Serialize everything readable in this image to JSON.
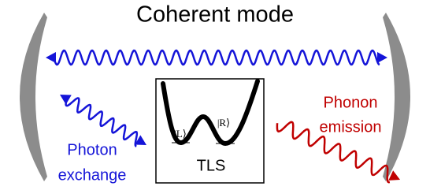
{
  "title": "Coherent mode",
  "nodes": [
    {
      "label": "TLS"
    },
    {
      "label": "|L⟩"
    },
    {
      "label": "|R⟩"
    }
  ],
  "annotations": [
    {
      "lines": [
        "Photon",
        "exchange"
      ]
    },
    {
      "lines": [
        "Phonon",
        "emission"
      ]
    }
  ]
}
